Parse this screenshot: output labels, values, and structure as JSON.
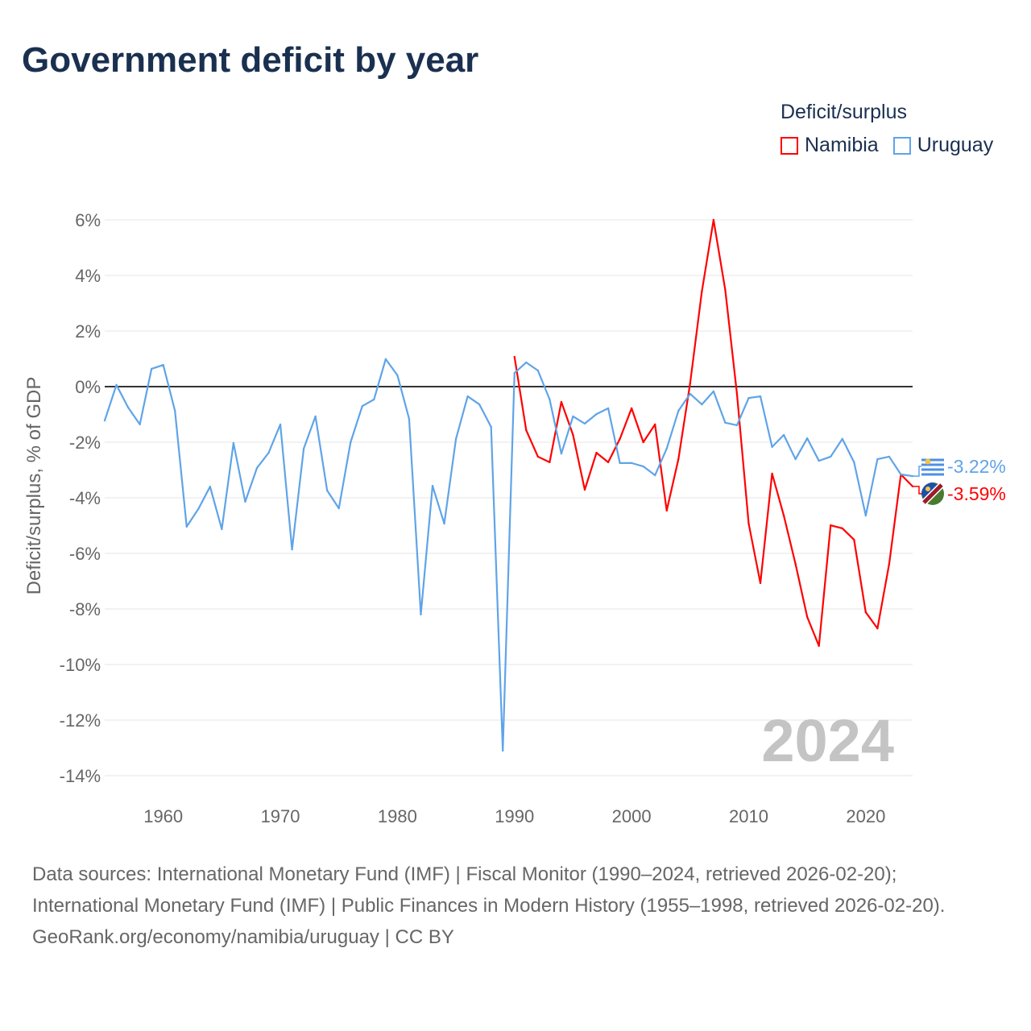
{
  "title": "Government deficit by year",
  "legend": {
    "title": "Deficit/surplus",
    "items": [
      {
        "name": "Namibia",
        "color": "#ff0000"
      },
      {
        "name": "Uruguay",
        "color": "#5fa4e8"
      }
    ]
  },
  "sources": [
    "Data sources: International Monetary Fund (IMF) | Fiscal Monitor (1990–2024, retrieved 2026-02-20); International Monetary Fund (IMF) | Public Finances in Modern History (1955–1998, retrieved 2026-02-20).",
    "GeoRank.org/economy/namibia/uruguay | CC BY"
  ],
  "chart_data": {
    "type": "line",
    "title": "Government deficit by year",
    "ylabel": "Deficit/surplus, % of GDP",
    "xlabel": "",
    "xlim": [
      1955,
      2024
    ],
    "ylim": [
      -14,
      6
    ],
    "xticks": [
      1960,
      1970,
      1980,
      1990,
      2000,
      2010,
      2020
    ],
    "yticks": [
      6,
      4,
      2,
      0,
      -2,
      -4,
      -6,
      -8,
      -10,
      -12,
      -14
    ],
    "ytick_labels": [
      "6%",
      "4%",
      "2%",
      "0%",
      "-2%",
      "-4%",
      "-6%",
      "-8%",
      "-10%",
      "-12%",
      "-14%"
    ],
    "year_watermark": "2024",
    "grid": true,
    "legend_position": "top-right",
    "series": [
      {
        "name": "Namibia",
        "color": "#ff0000",
        "end_label": "-3.59%",
        "start_year": 1990,
        "values": [
          1.07,
          -1.57,
          -2.52,
          -2.72,
          -0.55,
          -1.74,
          -3.71,
          -2.38,
          -2.72,
          -1.88,
          -0.78,
          -2.0,
          -1.36,
          -4.46,
          -2.61,
          0.12,
          3.42,
          6.0,
          3.48,
          -0.26,
          -4.93,
          -7.07,
          -3.13,
          -4.64,
          -6.38,
          -8.29,
          -9.33,
          -4.99,
          -5.1,
          -5.51,
          -8.12,
          -8.7,
          -6.38,
          -3.16,
          -3.59
        ]
      },
      {
        "name": "Uruguay",
        "color": "#5fa4e8",
        "end_label": "-3.22%",
        "start_year": 1955,
        "values": [
          -1.22,
          0.06,
          -0.75,
          -1.36,
          0.64,
          0.78,
          -0.87,
          -5.04,
          -4.4,
          -3.6,
          -5.13,
          -2.03,
          -4.14,
          -2.93,
          -2.38,
          -1.36,
          -5.86,
          -2.23,
          -1.07,
          -3.74,
          -4.38,
          -2.0,
          -0.7,
          -0.46,
          0.99,
          0.41,
          -1.16,
          -8.2,
          -3.57,
          -4.93,
          -1.88,
          -0.35,
          -0.64,
          -1.45,
          -13.1,
          0.49,
          0.87,
          0.58,
          -0.46,
          -2.41,
          -1.07,
          -1.33,
          -0.99,
          -0.78,
          -2.75,
          -2.75,
          -2.87,
          -3.19,
          -2.23,
          -0.87,
          -0.26,
          -0.64,
          -0.17,
          -1.3,
          -1.39,
          -0.41,
          -0.35,
          -2.17,
          -1.74,
          -2.61,
          -1.86,
          -2.67,
          -2.52,
          -1.88,
          -2.72,
          -4.64,
          -2.61,
          -2.52,
          -3.16,
          -3.22
        ]
      }
    ]
  }
}
